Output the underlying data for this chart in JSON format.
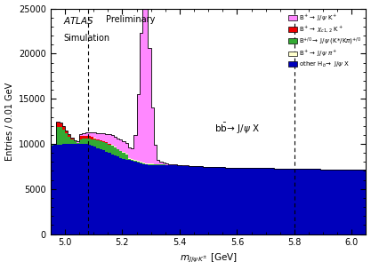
{
  "xmin": 4.95,
  "xmax": 6.05,
  "ymin": 0,
  "ymax": 25000,
  "bin_width": 0.01,
  "dashed_lines": [
    5.08,
    5.8
  ],
  "colors": {
    "pink": "#FF88FF",
    "red": "#EE0000",
    "green": "#33AA33",
    "yellow": "#FFFFCC",
    "blue": "#0000BB"
  },
  "background_color": "#FFFFFF",
  "yticks": [
    0,
    5000,
    10000,
    15000,
    20000,
    25000
  ],
  "xticks": [
    5.0,
    5.2,
    5.4,
    5.6,
    5.8,
    6.0
  ]
}
